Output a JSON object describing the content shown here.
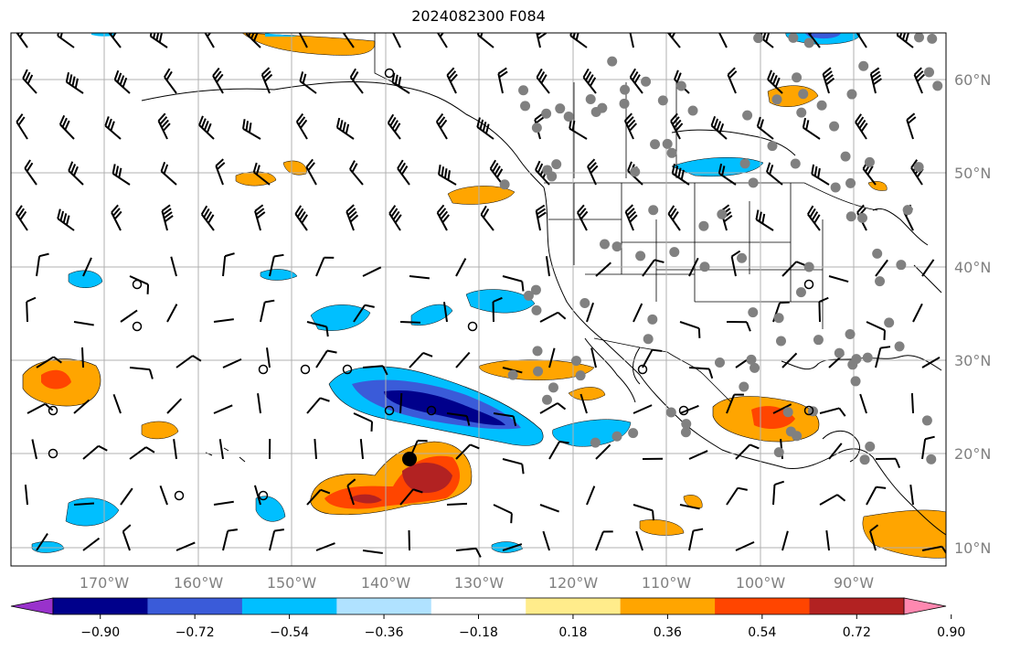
{
  "title": "2024082300 F084",
  "map": {
    "lon_range": [
      -179,
      -80
    ],
    "lat_range": [
      8,
      65
    ],
    "projection": "plate carree",
    "gridlines": true,
    "lat_labels": [
      "60°N",
      "50°N",
      "40°N",
      "30°N",
      "20°N",
      "10°N"
    ],
    "lon_labels": [
      "170°W",
      "160°W",
      "150°W",
      "140°W",
      "130°W",
      "120°W",
      "110°W",
      "100°W",
      "90°W"
    ],
    "label_color": "#808080",
    "features": [
      "coastlines",
      "country borders",
      "US state borders",
      "wind barbs",
      "station markers",
      "filled contours"
    ]
  },
  "colorbar": {
    "ticks": [
      "−0.90",
      "−0.72",
      "−0.54",
      "−0.36",
      "−0.18",
      "0.18",
      "0.36",
      "0.54",
      "0.72",
      "0.90"
    ],
    "colors": [
      "#9932cc",
      "#00008b",
      "#3a5bd9",
      "#00bfff",
      "#b0e2ff",
      "#ffffff",
      "#ffec8b",
      "#ffa500",
      "#ff4500",
      "#b22222",
      "#ff88b0"
    ],
    "extend": "both"
  },
  "chart_data": {
    "type": "heatmap",
    "title": "2024082300 F084",
    "units": "",
    "levels": [
      -0.9,
      -0.72,
      -0.54,
      -0.36,
      -0.18,
      0.18,
      0.36,
      0.54,
      0.72,
      0.9
    ],
    "notable_features": [
      {
        "region": "central North Pacific near 27N 135W",
        "sign": "negative",
        "min_level": -0.72
      },
      {
        "region": "southwest of Baja California near 17N 138W",
        "sign": "positive",
        "max_level": 0.72
      },
      {
        "region": "Gulf of Mexico near 25N 100W",
        "sign": "positive",
        "max_level": 0.72
      },
      {
        "region": "west of Hawaii near 28N 173W",
        "sign": "positive",
        "max_level": 0.54
      },
      {
        "region": "Hudson Bay region near 53N 105W",
        "sign": "negative",
        "min_level": -0.54
      },
      {
        "region": "Central America near 11N 88W",
        "sign": "positive",
        "max_level": 0.54
      }
    ]
  }
}
